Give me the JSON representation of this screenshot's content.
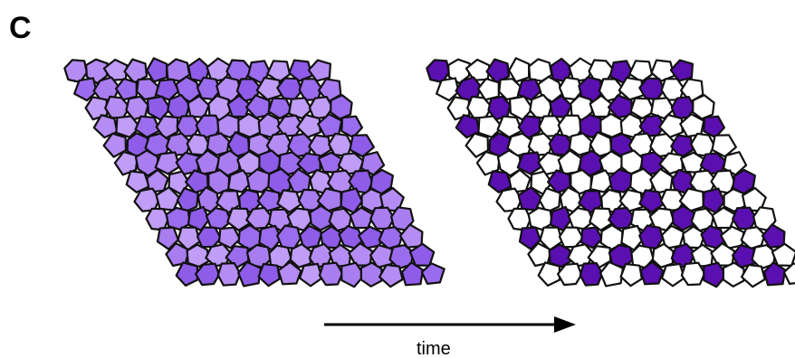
{
  "figure": {
    "panel_letter": "C",
    "arrow_label": "time"
  },
  "colors": {
    "cell_outline": "#111111",
    "left_shades": [
      "#b58cf3",
      "#a97df0",
      "#9c6cee",
      "#c09df6",
      "#8e5ce9"
    ],
    "right_high": "#5a0fb0",
    "right_low": "#ffffff",
    "arrow": "#000000"
  },
  "panels": [
    {
      "name": "initial-tissue",
      "state": "uniform-intermediate"
    },
    {
      "name": "patterned-tissue",
      "state": "salt-and-pepper"
    }
  ]
}
